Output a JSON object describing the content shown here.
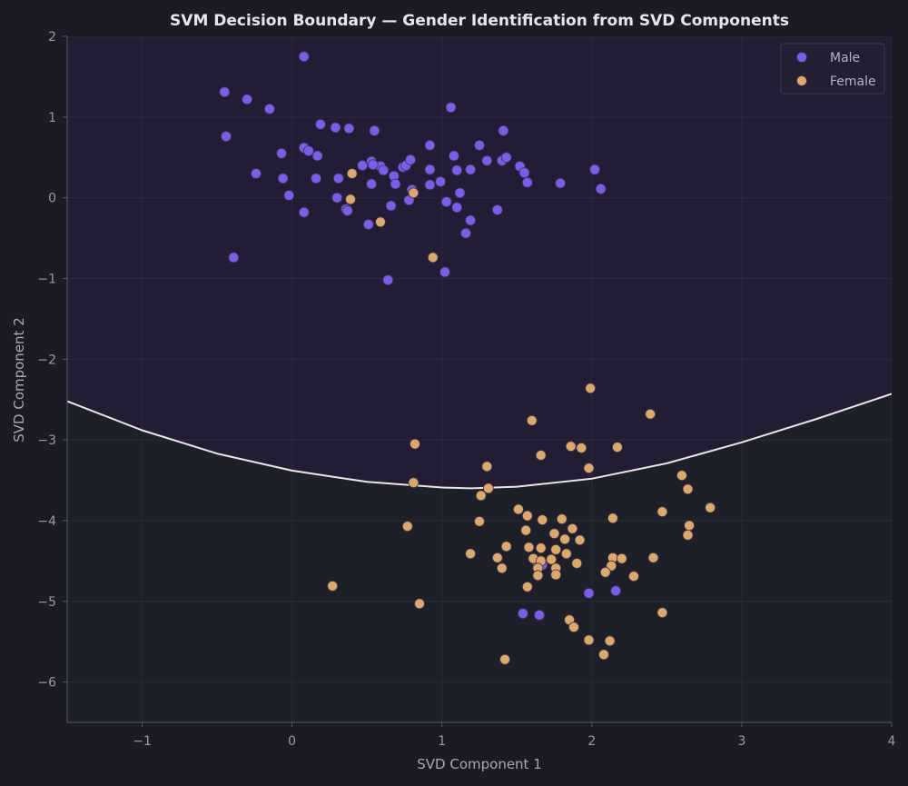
{
  "chart_data": {
    "type": "scatter",
    "title": "SVM Decision Boundary — Gender Identification from SVD Components",
    "xlabel": "SVD Component 1",
    "ylabel": "SVD Component 2",
    "xlim": [
      -1.5,
      4.0
    ],
    "ylim": [
      -6.5,
      2.0
    ],
    "xticks": [
      -1,
      0,
      1,
      2,
      3,
      4
    ],
    "xtick_labels": [
      "−1",
      "0",
      "1",
      "2",
      "3",
      "4"
    ],
    "yticks": [
      2,
      1,
      0,
      -1,
      -2,
      -3,
      -4,
      -5,
      -6
    ],
    "ytick_labels": [
      "2",
      "1",
      "0",
      "−1",
      "−2",
      "−3",
      "−4",
      "−5",
      "−6"
    ],
    "grid": true,
    "legend_position": "top-right",
    "background": {
      "upper_region": "#221d35",
      "lower_region": "#1e2029",
      "figure": "#1a1b24"
    },
    "decision_boundary": {
      "color": "#e8e6e6",
      "x": [
        -1.5,
        -1.0,
        -0.5,
        0.0,
        0.5,
        1.0,
        1.2,
        1.5,
        2.0,
        2.5,
        3.0,
        3.5,
        4.0
      ],
      "y": [
        -2.52,
        -2.88,
        -3.17,
        -3.38,
        -3.52,
        -3.59,
        -3.6,
        -3.58,
        -3.48,
        -3.29,
        -3.03,
        -2.74,
        -2.43
      ]
    },
    "series": [
      {
        "name": "Male",
        "color": "#7b5cf0",
        "points": [
          [
            -0.45,
            1.31
          ],
          [
            -0.3,
            1.22
          ],
          [
            0.08,
            1.75
          ],
          [
            -0.15,
            1.1
          ],
          [
            -0.44,
            0.76
          ],
          [
            0.19,
            0.91
          ],
          [
            0.29,
            0.87
          ],
          [
            0.38,
            0.86
          ],
          [
            0.55,
            0.83
          ],
          [
            1.06,
            1.12
          ],
          [
            1.41,
            0.83
          ],
          [
            -0.07,
            0.55
          ],
          [
            0.08,
            0.62
          ],
          [
            0.11,
            0.58
          ],
          [
            0.17,
            0.52
          ],
          [
            0.92,
            0.65
          ],
          [
            1.25,
            0.65
          ],
          [
            -0.24,
            0.3
          ],
          [
            -0.06,
            0.24
          ],
          [
            0.16,
            0.24
          ],
          [
            0.31,
            0.24
          ],
          [
            0.47,
            0.4
          ],
          [
            0.53,
            0.45
          ],
          [
            0.59,
            0.39
          ],
          [
            0.61,
            0.34
          ],
          [
            0.68,
            0.27
          ],
          [
            0.74,
            0.38
          ],
          [
            0.76,
            0.4
          ],
          [
            0.79,
            0.47
          ],
          [
            0.92,
            0.35
          ],
          [
            1.08,
            0.52
          ],
          [
            1.1,
            0.34
          ],
          [
            1.19,
            0.35
          ],
          [
            1.3,
            0.46
          ],
          [
            1.4,
            0.46
          ],
          [
            1.43,
            0.5
          ],
          [
            1.52,
            0.39
          ],
          [
            1.55,
            0.31
          ],
          [
            1.57,
            0.19
          ],
          [
            1.79,
            0.18
          ],
          [
            2.02,
            0.35
          ],
          [
            2.06,
            0.11
          ],
          [
            -0.02,
            0.03
          ],
          [
            0.08,
            -0.18
          ],
          [
            0.3,
            0.0
          ],
          [
            0.36,
            -0.14
          ],
          [
            0.37,
            -0.16
          ],
          [
            0.53,
            0.17
          ],
          [
            0.54,
            0.41
          ],
          [
            0.66,
            -0.1
          ],
          [
            0.69,
            0.17
          ],
          [
            0.78,
            -0.03
          ],
          [
            0.8,
            0.1
          ],
          [
            0.92,
            0.16
          ],
          [
            0.99,
            0.2
          ],
          [
            1.03,
            -0.05
          ],
          [
            1.1,
            -0.12
          ],
          [
            1.12,
            0.06
          ],
          [
            1.16,
            -0.44
          ],
          [
            1.19,
            -0.28
          ],
          [
            1.37,
            -0.15
          ],
          [
            0.51,
            -0.33
          ],
          [
            -0.39,
            -0.74
          ],
          [
            0.64,
            -1.02
          ],
          [
            1.02,
            -0.92
          ],
          [
            1.54,
            -5.15
          ],
          [
            1.65,
            -5.17
          ],
          [
            1.98,
            -4.9
          ],
          [
            2.16,
            -4.87
          ],
          [
            1.64,
            -4.54
          ],
          [
            1.67,
            -4.55
          ]
        ]
      },
      {
        "name": "Female",
        "color": "#e0a865",
        "points": [
          [
            0.4,
            0.3
          ],
          [
            0.39,
            -0.02
          ],
          [
            0.81,
            0.06
          ],
          [
            0.59,
            -0.3
          ],
          [
            0.94,
            -0.74
          ],
          [
            1.99,
            -2.36
          ],
          [
            1.6,
            -2.76
          ],
          [
            2.39,
            -2.68
          ],
          [
            0.82,
            -3.05
          ],
          [
            1.66,
            -3.19
          ],
          [
            1.86,
            -3.08
          ],
          [
            1.93,
            -3.1
          ],
          [
            2.17,
            -3.09
          ],
          [
            1.3,
            -3.33
          ],
          [
            1.98,
            -3.35
          ],
          [
            0.81,
            -3.53
          ],
          [
            1.31,
            -3.6
          ],
          [
            1.26,
            -3.69
          ],
          [
            2.6,
            -3.44
          ],
          [
            2.64,
            -3.61
          ],
          [
            2.79,
            -3.84
          ],
          [
            2.47,
            -3.89
          ],
          [
            1.51,
            -3.86
          ],
          [
            1.57,
            -3.94
          ],
          [
            1.67,
            -3.99
          ],
          [
            1.8,
            -3.98
          ],
          [
            1.25,
            -4.01
          ],
          [
            0.77,
            -4.07
          ],
          [
            1.56,
            -4.12
          ],
          [
            1.75,
            -4.16
          ],
          [
            1.82,
            -4.23
          ],
          [
            1.87,
            -4.1
          ],
          [
            1.92,
            -4.24
          ],
          [
            2.14,
            -3.97
          ],
          [
            2.65,
            -4.06
          ],
          [
            2.64,
            -4.18
          ],
          [
            1.43,
            -4.32
          ],
          [
            1.58,
            -4.33
          ],
          [
            1.66,
            -4.34
          ],
          [
            1.76,
            -4.36
          ],
          [
            1.83,
            -4.41
          ],
          [
            1.37,
            -4.46
          ],
          [
            1.61,
            -4.47
          ],
          [
            1.66,
            -4.5
          ],
          [
            1.73,
            -4.48
          ],
          [
            1.9,
            -4.53
          ],
          [
            2.14,
            -4.46
          ],
          [
            2.2,
            -4.47
          ],
          [
            2.41,
            -4.46
          ],
          [
            1.19,
            -4.41
          ],
          [
            1.4,
            -4.59
          ],
          [
            1.64,
            -4.59
          ],
          [
            1.76,
            -4.59
          ],
          [
            1.64,
            -4.68
          ],
          [
            1.76,
            -4.67
          ],
          [
            2.13,
            -4.56
          ],
          [
            2.09,
            -4.64
          ],
          [
            2.28,
            -4.69
          ],
          [
            1.57,
            -4.82
          ],
          [
            0.27,
            -4.81
          ],
          [
            0.85,
            -5.03
          ],
          [
            1.85,
            -5.23
          ],
          [
            1.88,
            -5.32
          ],
          [
            2.47,
            -5.14
          ],
          [
            1.98,
            -5.48
          ],
          [
            2.12,
            -5.49
          ],
          [
            2.08,
            -5.66
          ],
          [
            1.42,
            -5.72
          ]
        ]
      }
    ]
  }
}
